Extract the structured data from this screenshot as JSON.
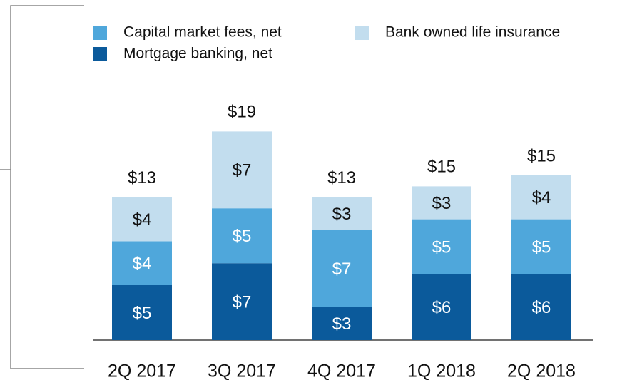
{
  "chart_data": {
    "type": "stacked-bar",
    "categories": [
      "2Q 2017",
      "3Q 2017",
      "4Q 2017",
      "1Q 2018",
      "2Q 2018"
    ],
    "series": [
      {
        "name": "Mortgage banking, net",
        "color": "#0b5a9b",
        "label_color": "#ffffff",
        "values": [
          5,
          7,
          3,
          6,
          6
        ],
        "value_labels": [
          "$5",
          "$7",
          "$3",
          "$6",
          "$6"
        ]
      },
      {
        "name": "Capital market fees, net",
        "color": "#4fa7db",
        "label_color": "#ffffff",
        "values": [
          4,
          5,
          7,
          5,
          5
        ],
        "value_labels": [
          "$4",
          "$5",
          "$7",
          "$5",
          "$5"
        ]
      },
      {
        "name": "Bank owned life insurance",
        "color": "#c2ddee",
        "label_color": "#111111",
        "values": [
          4,
          7,
          3,
          3,
          4
        ],
        "value_labels": [
          "$4",
          "$7",
          "$3",
          "$3",
          "$4"
        ]
      }
    ],
    "totals": [
      13,
      19,
      13,
      15,
      15
    ],
    "total_labels": [
      "$13",
      "$19",
      "$13",
      "$15",
      "$15"
    ]
  }
}
